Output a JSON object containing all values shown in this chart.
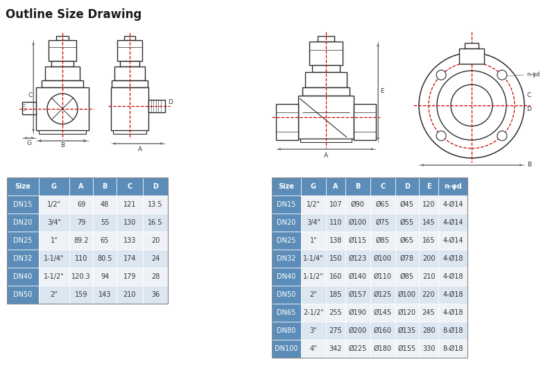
{
  "title": "Outline Size Drawing",
  "title_fontsize": 12,
  "title_weight": "bold",
  "bg_color": "#ffffff",
  "table1_headers": [
    "Size",
    "G",
    "A",
    "B",
    "C",
    "D"
  ],
  "table1_rows": [
    [
      "DN15",
      "1/2\"",
      "69",
      "48",
      "121",
      "13.5"
    ],
    [
      "DN20",
      "3/4\"",
      "79",
      "55",
      "130",
      "16.5"
    ],
    [
      "DN25",
      "1\"",
      "89.2",
      "65",
      "133",
      "20"
    ],
    [
      "DN32",
      "1-1/4\"",
      "110",
      "80.5",
      "174",
      "24"
    ],
    [
      "DN40",
      "1-1/2\"",
      "120.3",
      "94",
      "179",
      "28"
    ],
    [
      "DN50",
      "2\"",
      "159",
      "143",
      "210",
      "36"
    ]
  ],
  "table2_headers": [
    "Size",
    "G",
    "A",
    "B",
    "C",
    "D",
    "E",
    "n-φd"
  ],
  "table2_rows": [
    [
      "DN15",
      "1/2\"",
      "107",
      "Ø90",
      "Ø65",
      "Ø45",
      "120",
      "4-Ø14"
    ],
    [
      "DN20",
      "3/4\"",
      "110",
      "Ø100",
      "Ø75",
      "Ø55",
      "145",
      "4-Ø14"
    ],
    [
      "DN25",
      "1\"",
      "138",
      "Ø115",
      "Ø85",
      "Ø65",
      "165",
      "4-Ø14"
    ],
    [
      "DN32",
      "1-1/4\"",
      "150",
      "Ø123",
      "Ø100",
      "Ø78",
      "200",
      "4-Ø18"
    ],
    [
      "DN40",
      "1-1/2\"",
      "160",
      "Ø140",
      "Ø110",
      "Ø85",
      "210",
      "4-Ø18"
    ],
    [
      "DN50",
      "2\"",
      "185",
      "Ø157",
      "Ø125",
      "Ø100",
      "220",
      "4-Ø18"
    ],
    [
      "DN65",
      "2-1/2\"",
      "255",
      "Ø190",
      "Ø145",
      "Ø120",
      "245",
      "4-Ø18"
    ],
    [
      "DN80",
      "3\"",
      "275",
      "Ø200",
      "Ø160",
      "Ø135",
      "280",
      "8-Ø18"
    ],
    [
      "DN100",
      "4\"",
      "342",
      "Ø225",
      "Ø180",
      "Ø155",
      "330",
      "8-Ø18"
    ]
  ],
  "header_bg": "#5b8db8",
  "row_bg_blue": "#5b8db8",
  "row_bg_light": "#dce6f1",
  "row_bg_white": "#eef2f7",
  "line_color": "#2a2a2a",
  "dashed_color": "#cc0000"
}
